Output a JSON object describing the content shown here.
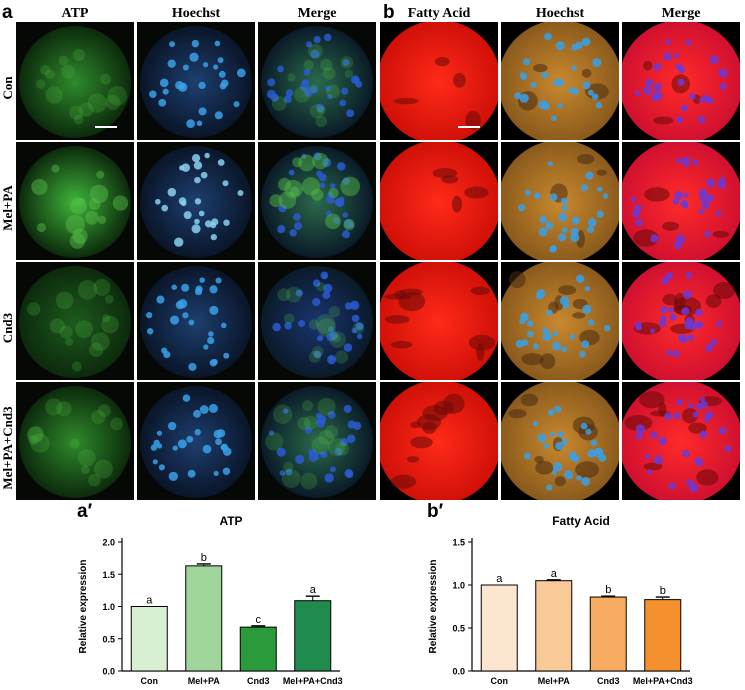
{
  "panel_a": {
    "letter": "a",
    "columns": [
      "ATP",
      "Hoechst",
      "Merge"
    ],
    "rows": [
      "Con",
      "Mel+PA",
      "Cnd3",
      "Mel+PA+Cnd3"
    ]
  },
  "panel_b": {
    "letter": "b",
    "columns": [
      "Fatty Acid",
      "Hoechst",
      "Merge"
    ]
  },
  "colors": {
    "atp_green": "#2f9a2a",
    "hoechst_blue": "#2f7fc8",
    "fatty_red": "#ff1a10",
    "hoechst_orange": "#c8802a",
    "merge_purple": "#5a3ad0"
  },
  "chart_data": [
    {
      "type": "bar",
      "panel_label": "a′",
      "title": "ATP",
      "ylabel": "Relative expression",
      "categories": [
        "Con",
        "Mel+PA",
        "Cnd3",
        "Mel+PA+Cnd3"
      ],
      "values": [
        1.0,
        1.63,
        0.68,
        1.09
      ],
      "errors": [
        0.0,
        0.03,
        0.02,
        0.07
      ],
      "letters": [
        "a",
        "b",
        "c",
        "a"
      ],
      "ylim": [
        0,
        2.0
      ],
      "yticks": [
        "0.0",
        "0.5",
        "1.0",
        "1.5",
        "2.0"
      ],
      "colors": [
        "#d8efd2",
        "#9fd49a",
        "#2a9a3a",
        "#1f8b4d"
      ]
    },
    {
      "type": "bar",
      "panel_label": "b′",
      "title": "Fatty Acid",
      "ylabel": "Relative expression",
      "categories": [
        "Con",
        "Mel+PA",
        "Cnd3",
        "Mel+PA+Cnd3"
      ],
      "values": [
        1.0,
        1.05,
        0.86,
        0.83
      ],
      "errors": [
        0.0,
        0.01,
        0.01,
        0.03
      ],
      "letters": [
        "a",
        "a",
        "b",
        "b"
      ],
      "ylim": [
        0,
        1.5
      ],
      "yticks": [
        "0.0",
        "0.5",
        "1.0",
        "1.5"
      ],
      "colors": [
        "#fde6cf",
        "#f9c998",
        "#f6ab60",
        "#f5902e"
      ]
    }
  ]
}
